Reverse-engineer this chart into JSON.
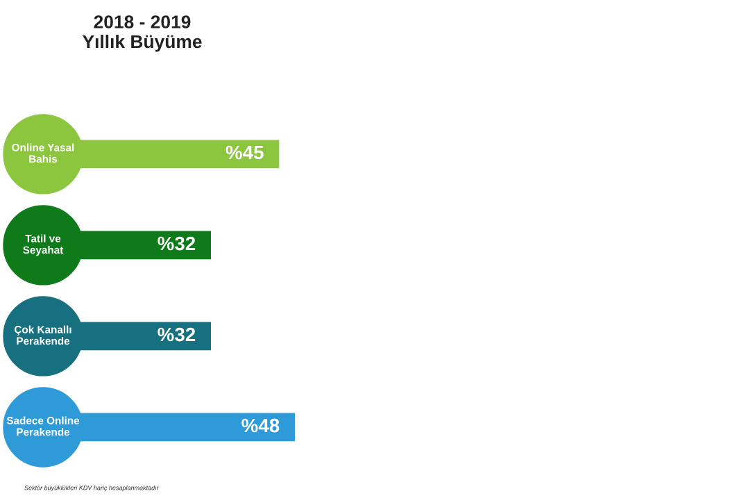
{
  "chart_data": {
    "type": "bar",
    "orientation": "horizontal",
    "title": "2018 - 2019\nYıllık Büyüme",
    "categories": [
      "Online Yasal\nBahis",
      "Tatil ve\nSeyahat",
      "Çok Kanallı\nPerakende",
      "Sadece Online\nPerakende"
    ],
    "values": [
      45,
      32,
      32,
      48
    ],
    "value_labels": [
      "%45",
      "%32",
      "%32",
      "%48"
    ],
    "colors": [
      "#8cc63f",
      "#0f7a1a",
      "#17707f",
      "#2e9ad8"
    ],
    "annotations": [
      "Sektör büyüklükleri KDV hariç hesaplanmaktadır"
    ]
  }
}
